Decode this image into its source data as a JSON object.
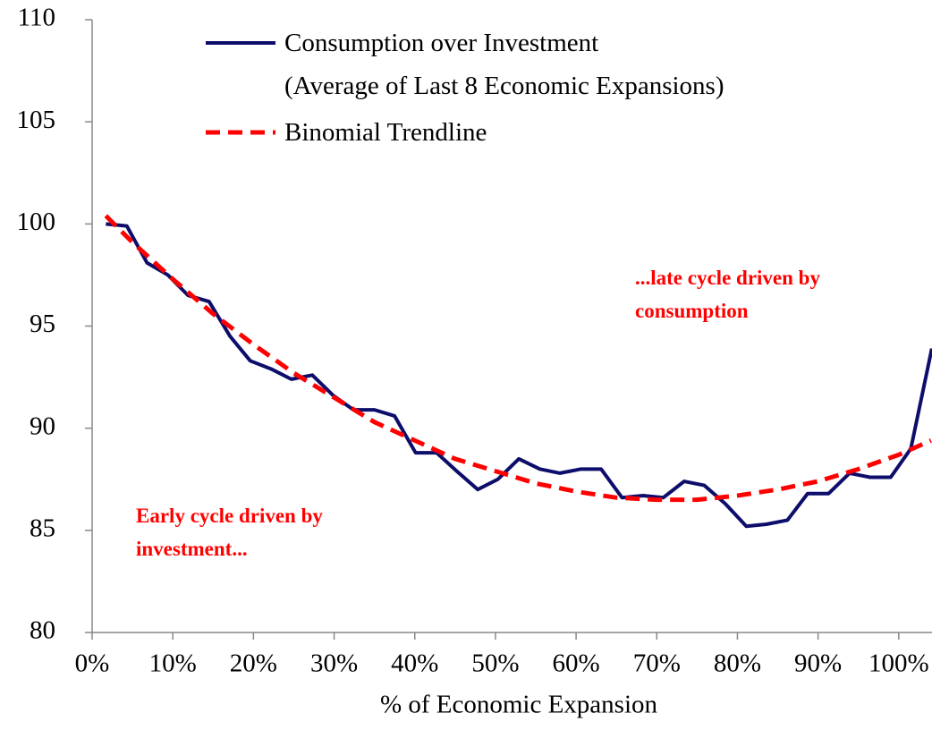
{
  "chart_data": {
    "type": "line",
    "x_label": "% of Economic Expansion",
    "xlim": [
      0,
      104
    ],
    "xticks": [
      {
        "value": 0,
        "label": "0%"
      },
      {
        "value": 10,
        "label": "10%"
      },
      {
        "value": 20,
        "label": "20%"
      },
      {
        "value": 30,
        "label": "30%"
      },
      {
        "value": 40,
        "label": "40%"
      },
      {
        "value": 50,
        "label": "50%"
      },
      {
        "value": 60,
        "label": "60%"
      },
      {
        "value": 70,
        "label": "70%"
      },
      {
        "value": 80,
        "label": "80%"
      },
      {
        "value": 90,
        "label": "90%"
      },
      {
        "value": 100,
        "label": "100%"
      }
    ],
    "ylim": [
      80,
      110
    ],
    "yticks": [
      80,
      85,
      90,
      95,
      100,
      105,
      110
    ],
    "series": [
      {
        "name": "Consumption over Investment\n(Average of Last 8 Economic Expansions)",
        "color": "#0d0d6b",
        "dash": false,
        "x": [
          1.7,
          4.3,
          6.8,
          9.4,
          11.9,
          14.5,
          17.1,
          19.6,
          22.2,
          24.7,
          27.3,
          29.9,
          32.4,
          35.0,
          37.5,
          40.1,
          42.7,
          45.2,
          47.8,
          50.3,
          52.9,
          55.5,
          58.0,
          60.6,
          63.1,
          65.7,
          68.3,
          70.8,
          73.4,
          75.9,
          78.5,
          81.1,
          83.6,
          86.2,
          88.7,
          91.3,
          93.9,
          96.4,
          99.0,
          101.5,
          104.1
        ],
        "values": [
          100.0,
          99.9,
          98.1,
          97.5,
          96.5,
          96.2,
          94.5,
          93.3,
          92.9,
          92.4,
          92.6,
          91.6,
          90.9,
          90.9,
          90.6,
          88.8,
          88.8,
          87.9,
          87.0,
          87.5,
          88.5,
          88.0,
          87.8,
          88.0,
          88.0,
          86.6,
          86.7,
          86.6,
          87.4,
          87.2,
          86.3,
          85.2,
          85.3,
          85.5,
          86.8,
          86.8,
          87.8,
          87.6,
          87.6,
          89.0,
          93.9
        ]
      },
      {
        "name": "Binomial Trendline",
        "color": "#ff0000",
        "dash": true,
        "x": [
          1.7,
          5,
          10,
          15,
          20,
          25,
          30,
          35,
          40,
          45,
          50,
          55,
          60,
          65,
          70,
          75,
          80,
          85,
          90,
          95,
          100,
          104
        ],
        "values": [
          100.4,
          99.1,
          97.3,
          95.6,
          94.1,
          92.7,
          91.5,
          90.3,
          89.4,
          88.5,
          87.9,
          87.3,
          86.9,
          86.6,
          86.5,
          86.5,
          86.7,
          87.0,
          87.4,
          88.0,
          88.7,
          89.4
        ]
      }
    ],
    "annotations": [
      "Early cycle driven by\ninvestment...",
      "...late cycle driven by\nconsumption"
    ]
  }
}
